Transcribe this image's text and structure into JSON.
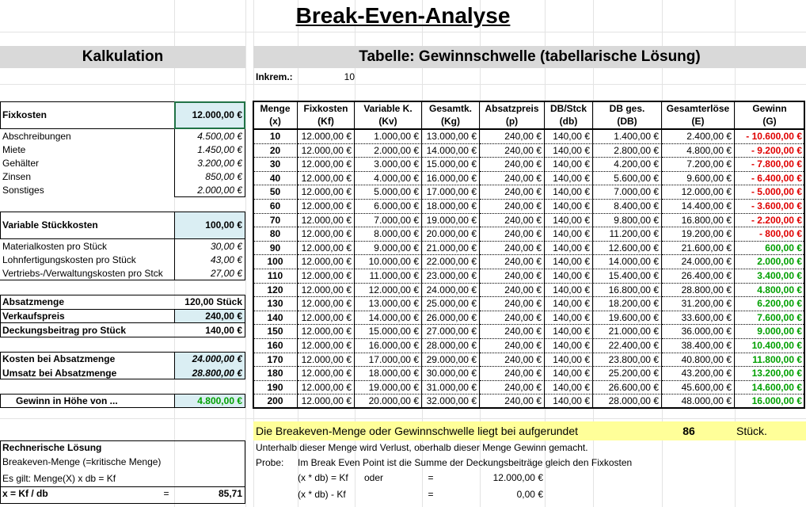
{
  "title": "Break-Even-Analyse",
  "calc": {
    "heading": "Kalkulation",
    "fixed": {
      "label": "Fixkosten",
      "value": "12.000,00 €"
    },
    "fixed_items": [
      {
        "label": "Abschreibungen",
        "value": "4.500,00 €"
      },
      {
        "label": "Miete",
        "value": "1.450,00 €"
      },
      {
        "label": "Gehälter",
        "value": "3.200,00 €"
      },
      {
        "label": "Zinsen",
        "value": "850,00 €"
      },
      {
        "label": "Sonstiges",
        "value": "2.000,00 €"
      }
    ],
    "variable": {
      "label": "Variable Stückkosten",
      "value": "100,00 €"
    },
    "variable_items": [
      {
        "label": "Materialkosten pro Stück",
        "value": "30,00 €"
      },
      {
        "label": "Lohnfertigungskosten pro Stück",
        "value": "43,00 €"
      },
      {
        "label": "Vertriebs-/Verwaltungskosten pro Stck",
        "value": "27,00 €"
      }
    ],
    "sales": [
      {
        "label": "Absatzmenge",
        "value": "120,00 Stück"
      },
      {
        "label": "Verkaufspreis",
        "value": "240,00 €"
      },
      {
        "label": "Deckungsbeitrag pro Stück",
        "value": "140,00 €"
      }
    ],
    "totals": [
      {
        "label": "Kosten bei Absatzmenge",
        "value": "24.000,00 €"
      },
      {
        "label": "Umsatz bei Absatzmenge",
        "value": "28.800,00 €"
      }
    ],
    "profit": {
      "label": "Gewinn in  Höhe von ...",
      "value": "4.800,00 €"
    }
  },
  "solution": {
    "heading": "Rechnerische Lösung",
    "lines": [
      "Breakeven-Menge (=kritische Menge)",
      "Es gilt: Menge(X) x db = Kf"
    ],
    "formula": "x = Kf / db",
    "eq": "=",
    "result": "85,71"
  },
  "table": {
    "heading": "Tabelle: Gewinnschwelle (tabellarische Lösung)",
    "increment": {
      "label": "Inkrem.:",
      "value": "10"
    },
    "columns": [
      [
        "Menge",
        "(x)"
      ],
      [
        "Fixkosten",
        "(Kf)"
      ],
      [
        "Variable K.",
        "(Kv)"
      ],
      [
        "Gesamtk.",
        "(Kg)"
      ],
      [
        "Absatzpreis",
        "(p)"
      ],
      [
        "DB/Stck",
        "(db)"
      ],
      [
        "DB ges.",
        "(DB)"
      ],
      [
        "Gesamterlöse",
        "(E)"
      ],
      [
        "Gewinn",
        "(G)"
      ]
    ],
    "rows": [
      [
        "10",
        "12.000,00 €",
        "1.000,00 €",
        "13.000,00 €",
        "240,00 €",
        "140,00 €",
        "1.400,00 €",
        "2.400,00 €",
        "- 10.600,00 €"
      ],
      [
        "20",
        "12.000,00 €",
        "2.000,00 €",
        "14.000,00 €",
        "240,00 €",
        "140,00 €",
        "2.800,00 €",
        "4.800,00 €",
        "- 9.200,00 €"
      ],
      [
        "30",
        "12.000,00 €",
        "3.000,00 €",
        "15.000,00 €",
        "240,00 €",
        "140,00 €",
        "4.200,00 €",
        "7.200,00 €",
        "- 7.800,00 €"
      ],
      [
        "40",
        "12.000,00 €",
        "4.000,00 €",
        "16.000,00 €",
        "240,00 €",
        "140,00 €",
        "5.600,00 €",
        "9.600,00 €",
        "- 6.400,00 €"
      ],
      [
        "50",
        "12.000,00 €",
        "5.000,00 €",
        "17.000,00 €",
        "240,00 €",
        "140,00 €",
        "7.000,00 €",
        "12.000,00 €",
        "- 5.000,00 €"
      ],
      [
        "60",
        "12.000,00 €",
        "6.000,00 €",
        "18.000,00 €",
        "240,00 €",
        "140,00 €",
        "8.400,00 €",
        "14.400,00 €",
        "- 3.600,00 €"
      ],
      [
        "70",
        "12.000,00 €",
        "7.000,00 €",
        "19.000,00 €",
        "240,00 €",
        "140,00 €",
        "9.800,00 €",
        "16.800,00 €",
        "- 2.200,00 €"
      ],
      [
        "80",
        "12.000,00 €",
        "8.000,00 €",
        "20.000,00 €",
        "240,00 €",
        "140,00 €",
        "11.200,00 €",
        "19.200,00 €",
        "- 800,00 €"
      ],
      [
        "90",
        "12.000,00 €",
        "9.000,00 €",
        "21.000,00 €",
        "240,00 €",
        "140,00 €",
        "12.600,00 €",
        "21.600,00 €",
        "600,00 €"
      ],
      [
        "100",
        "12.000,00 €",
        "10.000,00 €",
        "22.000,00 €",
        "240,00 €",
        "140,00 €",
        "14.000,00 €",
        "24.000,00 €",
        "2.000,00 €"
      ],
      [
        "110",
        "12.000,00 €",
        "11.000,00 €",
        "23.000,00 €",
        "240,00 €",
        "140,00 €",
        "15.400,00 €",
        "26.400,00 €",
        "3.400,00 €"
      ],
      [
        "120",
        "12.000,00 €",
        "12.000,00 €",
        "24.000,00 €",
        "240,00 €",
        "140,00 €",
        "16.800,00 €",
        "28.800,00 €",
        "4.800,00 €"
      ],
      [
        "130",
        "12.000,00 €",
        "13.000,00 €",
        "25.000,00 €",
        "240,00 €",
        "140,00 €",
        "18.200,00 €",
        "31.200,00 €",
        "6.200,00 €"
      ],
      [
        "140",
        "12.000,00 €",
        "14.000,00 €",
        "26.000,00 €",
        "240,00 €",
        "140,00 €",
        "19.600,00 €",
        "33.600,00 €",
        "7.600,00 €"
      ],
      [
        "150",
        "12.000,00 €",
        "15.000,00 €",
        "27.000,00 €",
        "240,00 €",
        "140,00 €",
        "21.000,00 €",
        "36.000,00 €",
        "9.000,00 €"
      ],
      [
        "160",
        "12.000,00 €",
        "16.000,00 €",
        "28.000,00 €",
        "240,00 €",
        "140,00 €",
        "22.400,00 €",
        "38.400,00 €",
        "10.400,00 €"
      ],
      [
        "170",
        "12.000,00 €",
        "17.000,00 €",
        "29.000,00 €",
        "240,00 €",
        "140,00 €",
        "23.800,00 €",
        "40.800,00 €",
        "11.800,00 €"
      ],
      [
        "180",
        "12.000,00 €",
        "18.000,00 €",
        "30.000,00 €",
        "240,00 €",
        "140,00 €",
        "25.200,00 €",
        "43.200,00 €",
        "13.200,00 €"
      ],
      [
        "190",
        "12.000,00 €",
        "19.000,00 €",
        "31.000,00 €",
        "240,00 €",
        "140,00 €",
        "26.600,00 €",
        "45.600,00 €",
        "14.600,00 €"
      ],
      [
        "200",
        "12.000,00 €",
        "20.000,00 €",
        "32.000,00 €",
        "240,00 €",
        "140,00 €",
        "28.000,00 €",
        "48.000,00 €",
        "16.000,00 €"
      ]
    ]
  },
  "summary": {
    "text": "Die Breakeven-Menge oder Gewinnschwelle liegt bei aufgerundet",
    "value": "86",
    "unit": "Stück.",
    "note": "Unterhalb dieser Menge wird Verlust, oberhalb dieser Menge Gewinn gemacht.",
    "check": {
      "label": "Probe:",
      "text": "Im Break Even Point ist die Summe der Deckungsbeiträge gleich den Fixkosten"
    },
    "eq1": {
      "left": "(x * db) = Kf",
      "word": "oder",
      "eq": "=",
      "value": "12.000,00 €"
    },
    "eq2": {
      "left": "(x * db) - Kf",
      "eq": "=",
      "value": "0,00 €"
    }
  }
}
